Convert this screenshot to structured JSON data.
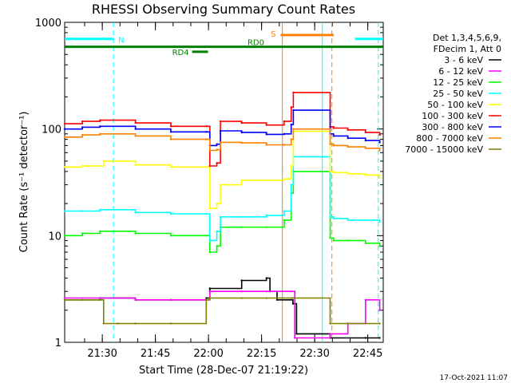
{
  "chart_data": {
    "type": "line",
    "title": "RHESSI Observing Summary Count Rates",
    "xlabel": "Start Time (28-Dec-07 21:19:22)",
    "ylabel": "Count Rate (s⁻¹ detector⁻¹)",
    "footer": "17-Oct-2021 11:07",
    "x_unit": "minutes after 21:19:22",
    "xlim": [
      0,
      90
    ],
    "ylim": [
      1,
      1000
    ],
    "yscale": "log",
    "x_ticks": [
      {
        "value": 10.63,
        "label": "21:30"
      },
      {
        "value": 25.63,
        "label": "21:45"
      },
      {
        "value": 40.63,
        "label": "22:00"
      },
      {
        "value": 55.63,
        "label": "22:15"
      },
      {
        "value": 70.63,
        "label": "22:30"
      },
      {
        "value": 85.63,
        "label": "22:45"
      }
    ],
    "y_ticks": [
      {
        "value": 1,
        "label": "1"
      },
      {
        "value": 10,
        "label": "10"
      },
      {
        "value": 100,
        "label": "100"
      },
      {
        "value": 1000,
        "label": "1000"
      }
    ],
    "legend": {
      "placement": "right",
      "header": [
        "Det 1,3,4,5,6,9,",
        "FDecim 1, Att 0"
      ]
    },
    "series": [
      {
        "name": "3 - 6 keV",
        "color": "#000000",
        "x": [
          0,
          10,
          20,
          30,
          40,
          41,
          50,
          57,
          58,
          60,
          64.5,
          65.5,
          75,
          85,
          89
        ],
        "y": [
          2.5,
          2.6,
          2.5,
          2.5,
          2.6,
          3.2,
          3.8,
          4.0,
          3.0,
          2.5,
          2.3,
          1.2,
          1.1,
          1.1,
          1.1
        ]
      },
      {
        "name": "6 - 12 keV",
        "color": "#ff00ff",
        "x": [
          0,
          10,
          20,
          30,
          40,
          41,
          50,
          57,
          64,
          65,
          75,
          80,
          85,
          89
        ],
        "y": [
          2.6,
          2.6,
          2.5,
          2.5,
          2.5,
          3.0,
          3.0,
          3.0,
          3.0,
          1.1,
          1.2,
          1.5,
          2.5,
          2.0
        ]
      },
      {
        "name": "12 - 25 keV",
        "color": "#00ff00",
        "x": [
          0,
          5,
          10,
          20,
          30,
          40,
          41,
          43,
          44,
          50,
          57,
          62,
          64,
          64.6,
          75,
          76,
          80,
          85,
          89
        ],
        "y": [
          10,
          10.5,
          11,
          10.5,
          10,
          10,
          7,
          8,
          12,
          12,
          12,
          14,
          25,
          40,
          9.5,
          9,
          9,
          8.5,
          8
        ]
      },
      {
        "name": "25 - 50 keV",
        "color": "#00ffff",
        "x": [
          0,
          5,
          10,
          20,
          30,
          40,
          41,
          43,
          44,
          50,
          57,
          62,
          64,
          64.6,
          75,
          76,
          80,
          85,
          89
        ],
        "y": [
          17,
          17,
          17.5,
          16.5,
          16,
          16,
          9,
          11,
          15,
          15,
          15.5,
          17,
          30,
          55,
          15,
          14.5,
          14,
          14,
          13.5
        ]
      },
      {
        "name": "50 - 100 keV",
        "color": "#ffff00",
        "x": [
          0,
          5,
          10,
          11,
          20,
          30,
          40,
          41,
          43,
          44,
          50,
          57,
          62,
          64,
          64.6,
          75,
          76,
          80,
          85,
          89
        ],
        "y": [
          44,
          45,
          45,
          50,
          46,
          44,
          44,
          18,
          20,
          30,
          33,
          33,
          34,
          45,
          95,
          40,
          39,
          38,
          37,
          35
        ]
      },
      {
        "name": "100 - 300 keV",
        "color": "#ff0000",
        "x": [
          0,
          5,
          10,
          20,
          30,
          40,
          41,
          43,
          44,
          50,
          57,
          62,
          64,
          64.6,
          75,
          76,
          80,
          85,
          89
        ],
        "y": [
          112,
          118,
          121,
          114,
          106,
          106,
          45,
          48,
          118,
          114,
          109,
          118,
          160,
          220,
          105,
          102,
          98,
          93,
          88
        ]
      },
      {
        "name": "300 - 800 keV",
        "color": "#0000ff",
        "x": [
          0,
          5,
          10,
          20,
          30,
          40,
          41,
          43,
          44,
          50,
          57,
          62,
          64,
          64.6,
          75,
          76,
          80,
          85,
          89
        ],
        "y": [
          100,
          104,
          106,
          100,
          94,
          94,
          70,
          72,
          96,
          93,
          89,
          90,
          110,
          150,
          90,
          86,
          82,
          78,
          75
        ]
      },
      {
        "name": "800 - 7000 keV",
        "color": "#ff8000",
        "x": [
          0,
          5,
          10,
          20,
          30,
          40,
          41,
          43,
          44,
          50,
          57,
          62,
          64,
          64.6,
          75,
          76,
          80,
          85,
          89
        ],
        "y": [
          84,
          88,
          90,
          86,
          80,
          80,
          63,
          64,
          75,
          74,
          71,
          71,
          80,
          100,
          72,
          70,
          68,
          66,
          63
        ]
      },
      {
        "name": "7000 - 15000 keV",
        "color": "#808000",
        "x": [
          0,
          5,
          10,
          11,
          15,
          20,
          30,
          40,
          41,
          50,
          57,
          64,
          64.6,
          75,
          80,
          85,
          89
        ],
        "y": [
          2.5,
          2.5,
          2.5,
          1.5,
          1.5,
          1.5,
          1.5,
          2.5,
          2.6,
          2.6,
          2.6,
          2.6,
          2.6,
          1.5,
          1.5,
          1.5,
          1.5
        ]
      }
    ],
    "annotations": {
      "state_bars": [
        {
          "label": "N",
          "color": "#00ffff",
          "value": 700,
          "ranges": [
            [
              0,
              13.8
            ],
            [
              82,
              90
            ]
          ]
        },
        {
          "label": "S",
          "color": "#ff8000",
          "value": 760,
          "ranges": [
            [
              61,
              76
            ]
          ]
        },
        {
          "label": "RD0",
          "color": "#008000",
          "value": 590,
          "ranges": [
            [
              0,
              90
            ]
          ]
        },
        {
          "label": "RD4",
          "color": "#008000",
          "value": 530,
          "ranges": [
            [
              36,
              40.5
            ]
          ]
        }
      ],
      "vertical_lines": [
        {
          "x": 13.8,
          "color": "#00ffff",
          "style": "dashed"
        },
        {
          "x": 88.6,
          "color": "#00ffff",
          "style": "dashed"
        },
        {
          "x": 72.8,
          "color": "#00ffff",
          "style": "solid"
        },
        {
          "x": 61.5,
          "color": "#ff8000",
          "style": "solid"
        },
        {
          "x": 75.5,
          "color": "#ff8000",
          "style": "dashed"
        }
      ]
    }
  }
}
